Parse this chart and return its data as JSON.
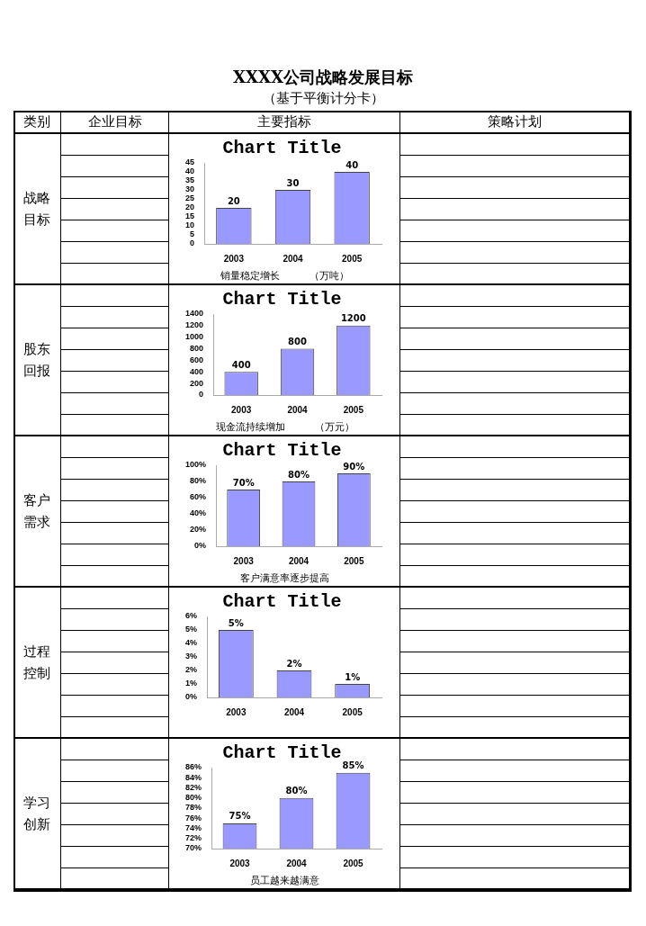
{
  "chart_data": [
    {
      "type": "other",
      "title": "XXXX公司战略发展目标",
      "subtitle": "（基于平衡计分卡）",
      "annotations": [
        "类别",
        "企业目标",
        "主要指标",
        "策略计划",
        "战略目标",
        "股东回报",
        "客户需求",
        "过程控制",
        "学习创新"
      ]
    },
    {
      "type": "bar",
      "title": "Chart Title",
      "categories": [
        "2003",
        "2004",
        "2005"
      ],
      "values": [
        20,
        30,
        40
      ],
      "color": "#9999ff",
      "ylim": [
        0,
        45
      ],
      "yticks": [
        0,
        5,
        10,
        15,
        20,
        25,
        30,
        35,
        40,
        45
      ],
      "data_labels": true,
      "annotations": [
        "销量稳定增长　　　（万吨）"
      ]
    },
    {
      "type": "bar",
      "title": "Chart Title",
      "categories": [
        "2003",
        "2004",
        "2005"
      ],
      "values": [
        400,
        800,
        1200
      ],
      "color": "#9999ff",
      "ylim": [
        0,
        1400
      ],
      "yticks": [
        0,
        200,
        400,
        600,
        800,
        1000,
        1200,
        1400
      ],
      "data_labels": true,
      "annotations": [
        "现金流持续增加　　　（万元）"
      ]
    },
    {
      "type": "bar",
      "title": "Chart Title",
      "categories": [
        "2003",
        "2004",
        "2005"
      ],
      "values": [
        70,
        80,
        90
      ],
      "color": "#9999ff",
      "ylim": [
        0,
        100
      ],
      "yticks": [
        {
          "value": 0,
          "label": "0%"
        },
        {
          "value": 20,
          "label": "20%"
        },
        {
          "value": 40,
          "label": "40%"
        },
        {
          "value": 60,
          "label": "60%"
        },
        {
          "value": 80,
          "label": "80%"
        },
        {
          "value": 100,
          "label": "100%"
        }
      ],
      "value_labels": [
        "70%",
        "80%",
        "90%"
      ],
      "annotations": [
        "客户满意率逐步提高"
      ]
    },
    {
      "type": "bar",
      "title": "Chart Title",
      "categories": [
        "2003",
        "2004",
        "2005"
      ],
      "values": [
        5,
        2,
        1
      ],
      "color": "#9999ff",
      "ylim": [
        0,
        6
      ],
      "yticks": [
        {
          "value": 0,
          "label": "0%"
        },
        {
          "value": 1,
          "label": "1%"
        },
        {
          "value": 2,
          "label": "2%"
        },
        {
          "value": 3,
          "label": "3%"
        },
        {
          "value": 4,
          "label": "4%"
        },
        {
          "value": 5,
          "label": "5%"
        },
        {
          "value": 6,
          "label": "6%"
        }
      ],
      "value_labels": [
        "5%",
        "2%",
        "1%"
      ]
    },
    {
      "type": "bar",
      "title": "Chart Title",
      "categories": [
        "2003",
        "2004",
        "2005"
      ],
      "values": [
        75,
        80,
        85
      ],
      "color": "#9999ff",
      "ylim": [
        70,
        86
      ],
      "yticks": [
        {
          "value": 70,
          "label": "70%"
        },
        {
          "value": 72,
          "label": "72%"
        },
        {
          "value": 74,
          "label": "74%"
        },
        {
          "value": 76,
          "label": "76%"
        },
        {
          "value": 78,
          "label": "78%"
        },
        {
          "value": 80,
          "label": "80%"
        },
        {
          "value": 82,
          "label": "82%"
        },
        {
          "value": 84,
          "label": "84%"
        },
        {
          "value": 86,
          "label": "86%"
        }
      ],
      "value_labels": [
        "75%",
        "80%",
        "85%"
      ],
      "annotations": [
        "员工越来越满意"
      ]
    }
  ]
}
